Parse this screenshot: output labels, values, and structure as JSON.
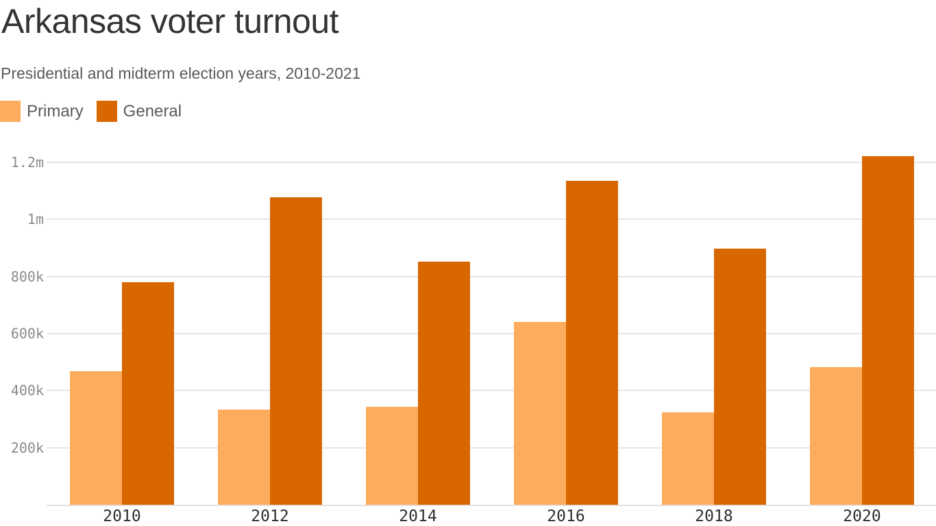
{
  "header": {
    "title": "Arkansas voter turnout",
    "subtitle": "Presidential and midterm election years, 2010-2021"
  },
  "legend": [
    {
      "label": "Primary",
      "color": "#FDAC5E"
    },
    {
      "label": "General",
      "color": "#D96700"
    }
  ],
  "axis": {
    "y_ticks": [
      {
        "label": "200k",
        "value": 200000
      },
      {
        "label": "400k",
        "value": 400000
      },
      {
        "label": "600k",
        "value": 600000
      },
      {
        "label": "800k",
        "value": 800000
      },
      {
        "label": "1m",
        "value": 1000000
      },
      {
        "label": "1.2m",
        "value": 1200000
      }
    ],
    "x_ticks": [
      "2010",
      "2012",
      "2014",
      "2016",
      "2018",
      "2020"
    ]
  },
  "chart_data": {
    "type": "bar",
    "title": "Arkansas voter turnout",
    "subtitle": "Presidential and midterm election years, 2010-2021",
    "xlabel": "",
    "ylabel": "",
    "categories": [
      "2010",
      "2012",
      "2014",
      "2016",
      "2018",
      "2020"
    ],
    "series": [
      {
        "name": "Primary",
        "color": "#FDAC5E",
        "values": [
          469000,
          334000,
          344000,
          642000,
          325000,
          483000
        ]
      },
      {
        "name": "General",
        "color": "#D96700",
        "values": [
          779000,
          1077000,
          851000,
          1135000,
          897000,
          1221000
        ]
      }
    ],
    "ylim": [
      0,
      1200000
    ],
    "y_tick_labels": [
      "200k",
      "400k",
      "600k",
      "800k",
      "1m",
      "1.2m"
    ],
    "grid": true,
    "legend_position": "top-left"
  }
}
